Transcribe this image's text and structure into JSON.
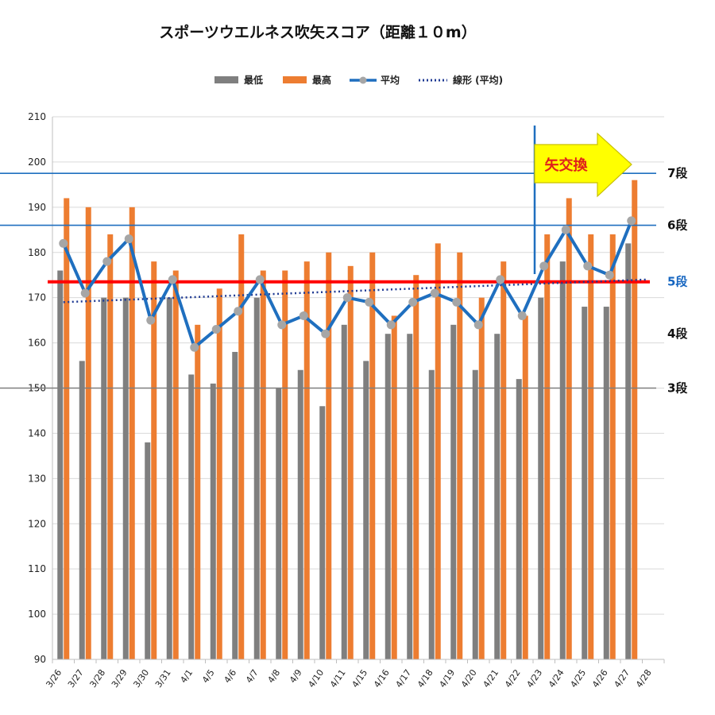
{
  "chart_data": {
    "type": "bar",
    "title": "スポーツウエルネス吹矢スコア（距離１０m）",
    "categories": [
      "3/26",
      "3/27",
      "3/28",
      "3/29",
      "3/30",
      "3/31",
      "4/1",
      "4/5",
      "4/6",
      "4/7",
      "4/8",
      "4/9",
      "4/10",
      "4/11",
      "4/15",
      "4/16",
      "4/17",
      "4/18",
      "4/19",
      "4/20",
      "4/21",
      "4/22",
      "4/23",
      "4/24",
      "4/25",
      "4/26",
      "4/27",
      "4/28"
    ],
    "series": [
      {
        "name": "最低",
        "kind": "bar",
        "color": "#7f7f7f",
        "values": [
          176,
          156,
          170,
          170,
          138,
          170,
          153,
          151,
          158,
          170,
          150,
          154,
          146,
          164,
          156,
          162,
          162,
          154,
          164,
          154,
          162,
          152,
          170,
          178,
          168,
          168,
          182,
          null
        ]
      },
      {
        "name": "最高",
        "kind": "bar",
        "color": "#ed7d31",
        "values": [
          192,
          190,
          184,
          190,
          178,
          176,
          164,
          172,
          184,
          176,
          176,
          178,
          180,
          177,
          180,
          166,
          175,
          182,
          180,
          170,
          178,
          166,
          184,
          192,
          184,
          184,
          196,
          null
        ]
      },
      {
        "name": "平均",
        "kind": "line",
        "color": "#1f6fbf",
        "marker_color": "#a6a6a6",
        "values": [
          182,
          171,
          178,
          183,
          165,
          174,
          159,
          163,
          167,
          174,
          164,
          166,
          162,
          170,
          169,
          164,
          169,
          171,
          169,
          164,
          174,
          166,
          177,
          185,
          177,
          175,
          187,
          null
        ]
      },
      {
        "name": "線形 (平均)",
        "kind": "trend",
        "color": "#1f3a93",
        "start": 169,
        "end": 174
      }
    ],
    "ylim": [
      90,
      210
    ],
    "yticks": [
      90,
      100,
      110,
      120,
      130,
      140,
      150,
      160,
      170,
      180,
      190,
      200,
      210
    ],
    "legend_position": "top",
    "grid": true,
    "reference_lines": [
      {
        "value": 197.5,
        "label": "7段",
        "color": "#1f6fbf"
      },
      {
        "value": 186,
        "label": "6段",
        "color": "#1f6fbf"
      },
      {
        "value": 173.5,
        "label": "5段",
        "color": "#ff0000"
      },
      {
        "value": 162,
        "label": "4段",
        "color": "none"
      },
      {
        "value": 150,
        "label": "3段",
        "color": "#7f7f7f"
      }
    ],
    "annotation": {
      "text": "矢交換",
      "at_category": "4/23",
      "fill": "#ffff00"
    }
  }
}
